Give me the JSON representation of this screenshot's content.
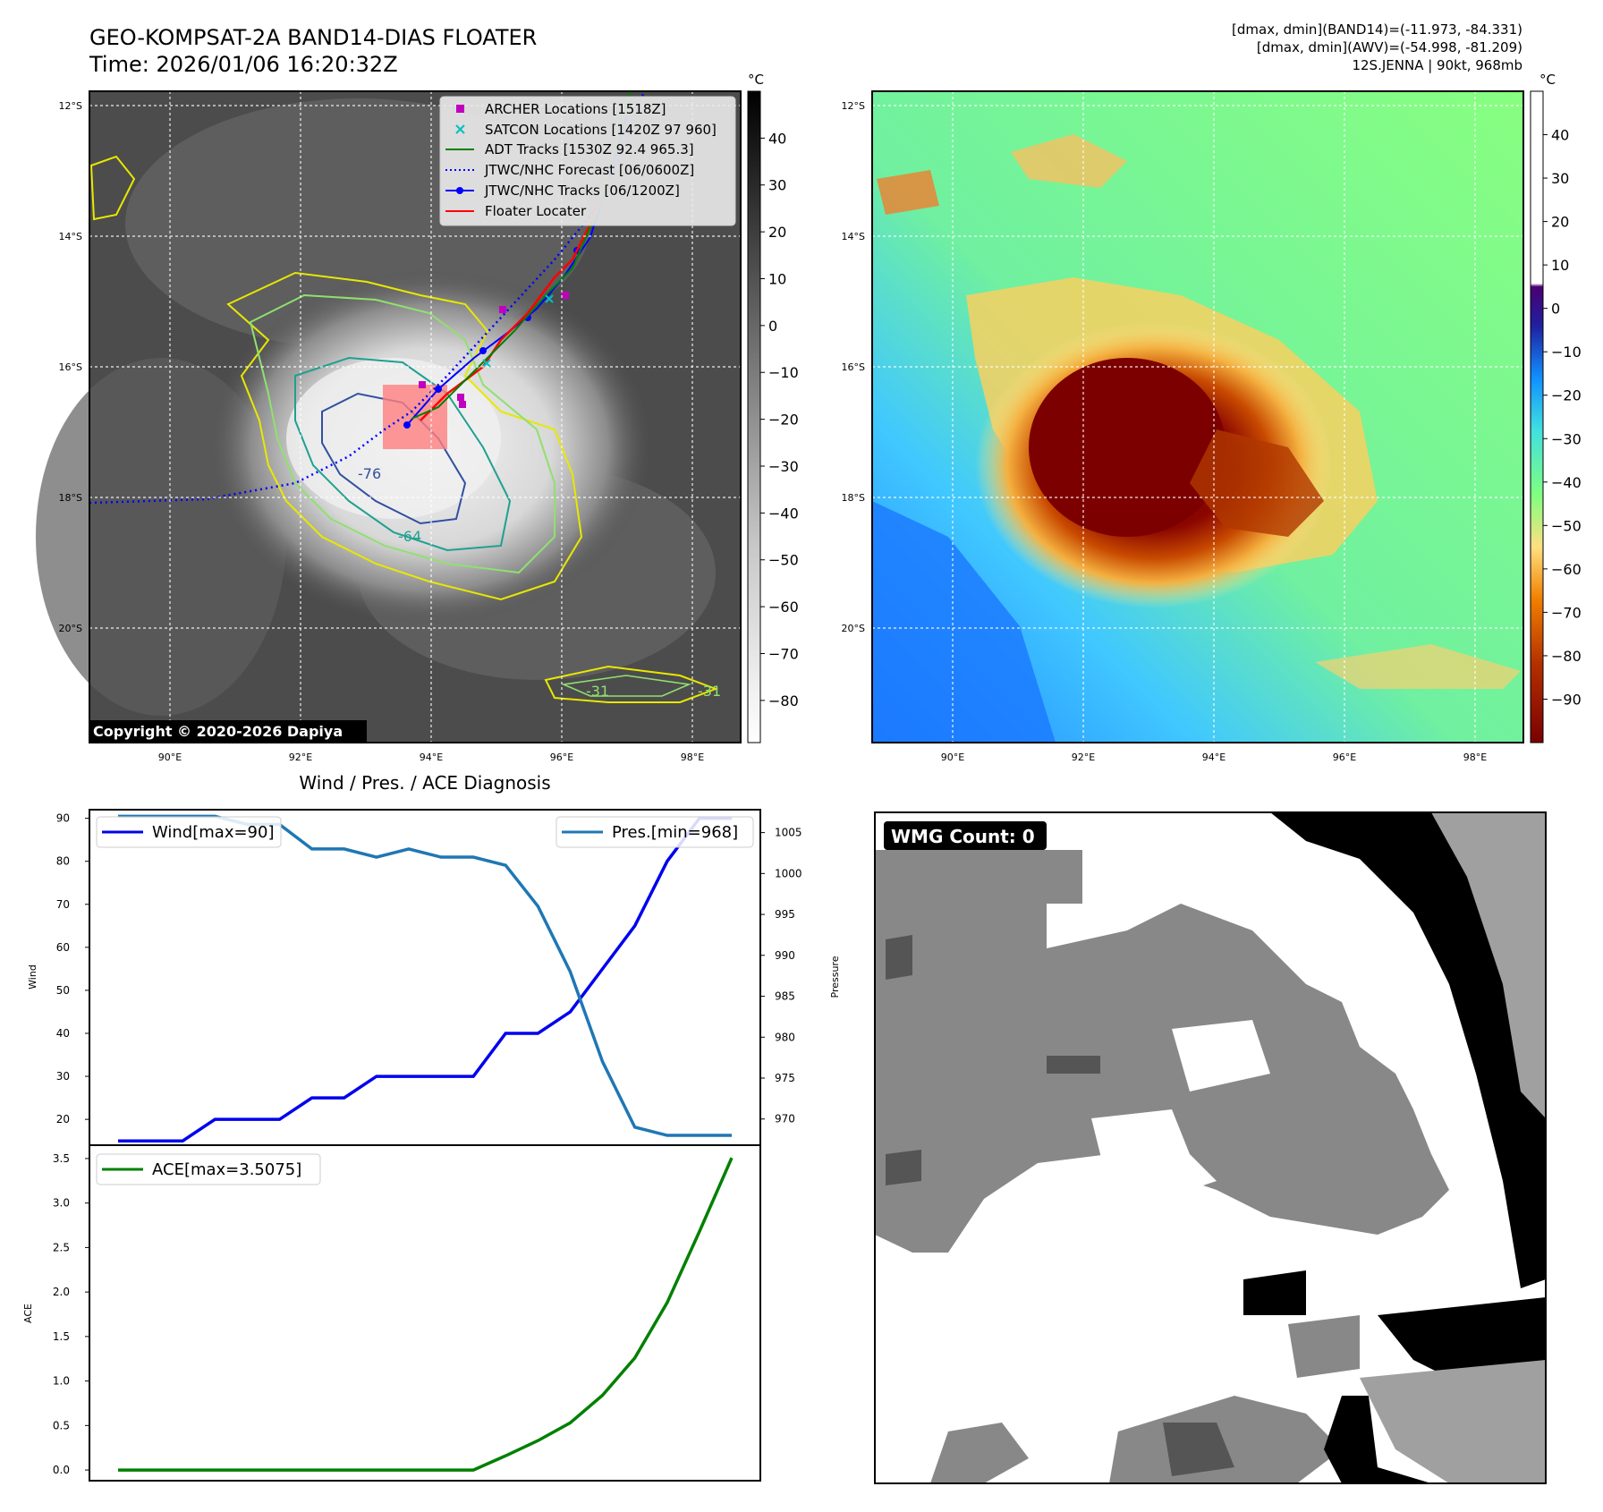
{
  "header": {
    "title": "GEO-KOMPSAT-2A BAND14-DIAS FLOATER",
    "time": "Time: 2026/01/06 16:20:32Z",
    "info1": "[dmax, dmin](BAND14)=(-11.973, -84.331)",
    "info2": "[dmax, dmin](AWV)=(-54.998, -81.209)",
    "info3": "12S.JENNA | 90kt, 968mb"
  },
  "copyright": "Copyright © 2020-2026 Dapiya",
  "map": {
    "lat_ticks": [
      "12°S",
      "14°S",
      "16°S",
      "18°S",
      "20°S"
    ],
    "lon_ticks": [
      "90°E",
      "92°E",
      "94°E",
      "96°E",
      "98°E"
    ],
    "contour_labels": [
      "-76",
      "-64",
      "-31",
      "-31"
    ]
  },
  "colorbar_ir": {
    "unit": "°C",
    "ticks": [
      "40",
      "30",
      "20",
      "10",
      "0",
      "−10",
      "−20",
      "−30",
      "−40",
      "−50",
      "−60",
      "−70",
      "−80"
    ]
  },
  "colorbar_wv": {
    "unit": "°C",
    "ticks": [
      "40",
      "30",
      "20",
      "10",
      "0",
      "−10",
      "−20",
      "−30",
      "−40",
      "−50",
      "−60",
      "−70",
      "−80",
      "−90"
    ]
  },
  "legend": [
    {
      "label": "ARCHER Locations [1518Z]",
      "color": "#c000c0",
      "marker": "square"
    },
    {
      "label": "SATCON Locations [1420Z 97 960]",
      "color": "#00c0c0",
      "marker": "x"
    },
    {
      "label": "ADT Tracks [1530Z 92.4 965.3]",
      "color": "#008000",
      "marker": "line"
    },
    {
      "label": "JTWC/NHC Forecast [06/0600Z]",
      "color": "#0000ff",
      "marker": "dotted"
    },
    {
      "label": "JTWC/NHC Tracks [06/1200Z]",
      "color": "#0000ff",
      "marker": "line-dot"
    },
    {
      "label": "Floater Locater",
      "color": "#ff0000",
      "marker": "line"
    }
  ],
  "wmg": {
    "label": "WMG Count: 0"
  },
  "chart_data": [
    {
      "type": "line",
      "title": "Wind / Pres. / ACE Diagnosis",
      "ylabel": "Wind",
      "y2label": "Pressure",
      "ylim": [
        14,
        92
      ],
      "y2lim": [
        966.8,
        1007.8
      ],
      "yticks": [
        20,
        30,
        40,
        50,
        60,
        70,
        80,
        90
      ],
      "y2ticks": [
        970,
        975,
        980,
        985,
        990,
        995,
        1000,
        1005
      ],
      "x": [
        0,
        1,
        2,
        3,
        4,
        5,
        6,
        7,
        8,
        9,
        10,
        11,
        12,
        13,
        14,
        15,
        16,
        17,
        18,
        19
      ],
      "series": [
        {
          "name": "Wind[max=90]",
          "color": "#0000ee",
          "axis": "left",
          "values": [
            15,
            15,
            15,
            20,
            20,
            20,
            25,
            25,
            30,
            30,
            30,
            30,
            40,
            40,
            45,
            55,
            65,
            80,
            90,
            90
          ]
        },
        {
          "name": "Pres.[min=968]",
          "color": "#1f77b4",
          "axis": "right",
          "values": [
            1007,
            1007,
            1007,
            1007,
            1006,
            1006,
            1003,
            1003,
            1002,
            1003,
            1002,
            1002,
            1001,
            996,
            988,
            977,
            969,
            968,
            968,
            968
          ]
        }
      ],
      "legend": [
        "upper-left",
        "upper-right"
      ]
    },
    {
      "type": "line",
      "ylabel": "ACE",
      "ylim": [
        -0.12,
        3.65
      ],
      "yticks": [
        0.0,
        0.5,
        1.0,
        1.5,
        2.0,
        2.5,
        3.0,
        3.5
      ],
      "x": [
        0,
        1,
        2,
        3,
        4,
        5,
        6,
        7,
        8,
        9,
        10,
        11,
        12,
        13,
        14,
        15,
        16,
        17,
        18,
        19
      ],
      "series": [
        {
          "name": "ACE[max=3.5075]",
          "color": "#008000",
          "values": [
            0,
            0,
            0,
            0,
            0,
            0,
            0,
            0,
            0,
            0,
            0,
            0,
            0.16,
            0.33,
            0.53,
            0.84,
            1.26,
            1.88,
            2.68,
            3.5075
          ]
        }
      ],
      "legend": "upper-left"
    }
  ]
}
